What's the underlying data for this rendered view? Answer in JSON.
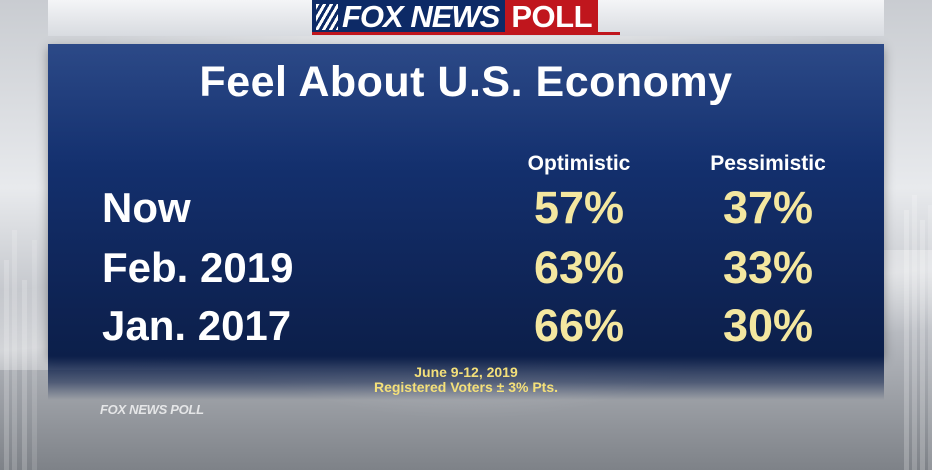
{
  "brand": {
    "logo_left": "FOX NEWS",
    "logo_right": "POLL",
    "watermark": "FOX NEWS POLL"
  },
  "colors": {
    "panel": "#143170",
    "value": "#f4e7a0",
    "footnote": "#f4e07a",
    "logo_red": "#c0161d",
    "logo_blue": "#0d2a66"
  },
  "chart_data": {
    "type": "table",
    "title": "Feel About U.S. Economy",
    "columns": [
      "Optimistic",
      "Pessimistic"
    ],
    "rows": [
      {
        "label": "Now",
        "values": [
          "57%",
          "37%"
        ]
      },
      {
        "label": "Feb. 2019",
        "values": [
          "63%",
          "33%"
        ]
      },
      {
        "label": "Jan. 2017",
        "values": [
          "66%",
          "30%"
        ]
      }
    ]
  },
  "footnote": {
    "dates": "June 9-12, 2019",
    "sample": "Registered Voters ± 3% Pts."
  }
}
